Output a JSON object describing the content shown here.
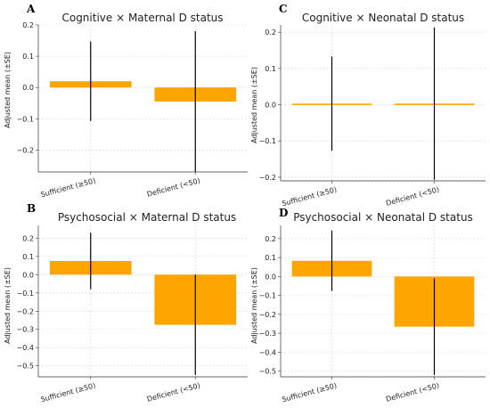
{
  "chart_data": [
    {
      "panel": "A",
      "type": "bar",
      "title": "Cognitive × Maternal D status",
      "ylabel": "Adjusted mean (±SE)",
      "categories": [
        "Sufficient (≥50)",
        "Deficient (<50)"
      ],
      "values": [
        0.02,
        -0.045
      ],
      "errors": [
        0.127,
        0.225
      ],
      "ylim": [
        -0.27,
        0.2
      ],
      "yticks": [
        "0.2",
        "0.1",
        "0.0",
        "−0.1",
        "−0.2"
      ],
      "ytick_values": [
        0.2,
        0.1,
        0.0,
        -0.1,
        -0.2
      ],
      "grid": true,
      "color": "#FFA500"
    },
    {
      "panel": "C",
      "type": "bar",
      "title": "Cognitive × Neonatal D status",
      "ylabel": "Adjusted mean (±SE)",
      "categories": [
        "Sufficient (≥50)",
        "Deficient (<50)"
      ],
      "values": [
        0.003,
        0.003
      ],
      "errors": [
        0.13,
        0.21
      ],
      "ylim": [
        -0.21,
        0.22
      ],
      "yticks": [
        "0.2",
        "0.1",
        "0.0",
        "−0.1",
        "−0.2"
      ],
      "ytick_values": [
        0.2,
        0.1,
        0.0,
        -0.1,
        -0.2
      ],
      "grid": true,
      "color": "#FFA500"
    },
    {
      "panel": "B",
      "type": "bar",
      "title": "Psychosocial × Maternal D status",
      "ylabel": "Adjusted mean (±SE)",
      "categories": [
        "Sufficient (≥50)",
        "Deficient (<50)"
      ],
      "values": [
        0.075,
        -0.275
      ],
      "errors": [
        0.155,
        0.275
      ],
      "ylim": [
        -0.56,
        0.27
      ],
      "yticks": [
        "0.2",
        "0.1",
        "0.0",
        "−0.1",
        "−0.2",
        "−0.3",
        "−0.4",
        "−0.5"
      ],
      "ytick_values": [
        0.2,
        0.1,
        0.0,
        -0.1,
        -0.2,
        -0.3,
        -0.4,
        -0.5
      ],
      "grid": true,
      "color": "#FFA500"
    },
    {
      "panel": "D",
      "type": "bar",
      "title": "Psychosocial × Neonatal D status",
      "ylabel": "Adjusted mean (±SE)",
      "categories": [
        "Sufficient (≥50)",
        "Deficient (<50)"
      ],
      "values": [
        0.083,
        -0.265
      ],
      "errors": [
        0.16,
        0.255
      ],
      "ylim": [
        -0.53,
        0.27
      ],
      "yticks": [
        "0.2",
        "0.1",
        "0.0",
        "−0.1",
        "−0.2",
        "−0.3",
        "−0.4",
        "−0.5"
      ],
      "ytick_values": [
        0.2,
        0.1,
        0.0,
        -0.1,
        -0.2,
        -0.3,
        -0.4,
        -0.5
      ],
      "grid": true,
      "color": "#FFA500"
    }
  ]
}
